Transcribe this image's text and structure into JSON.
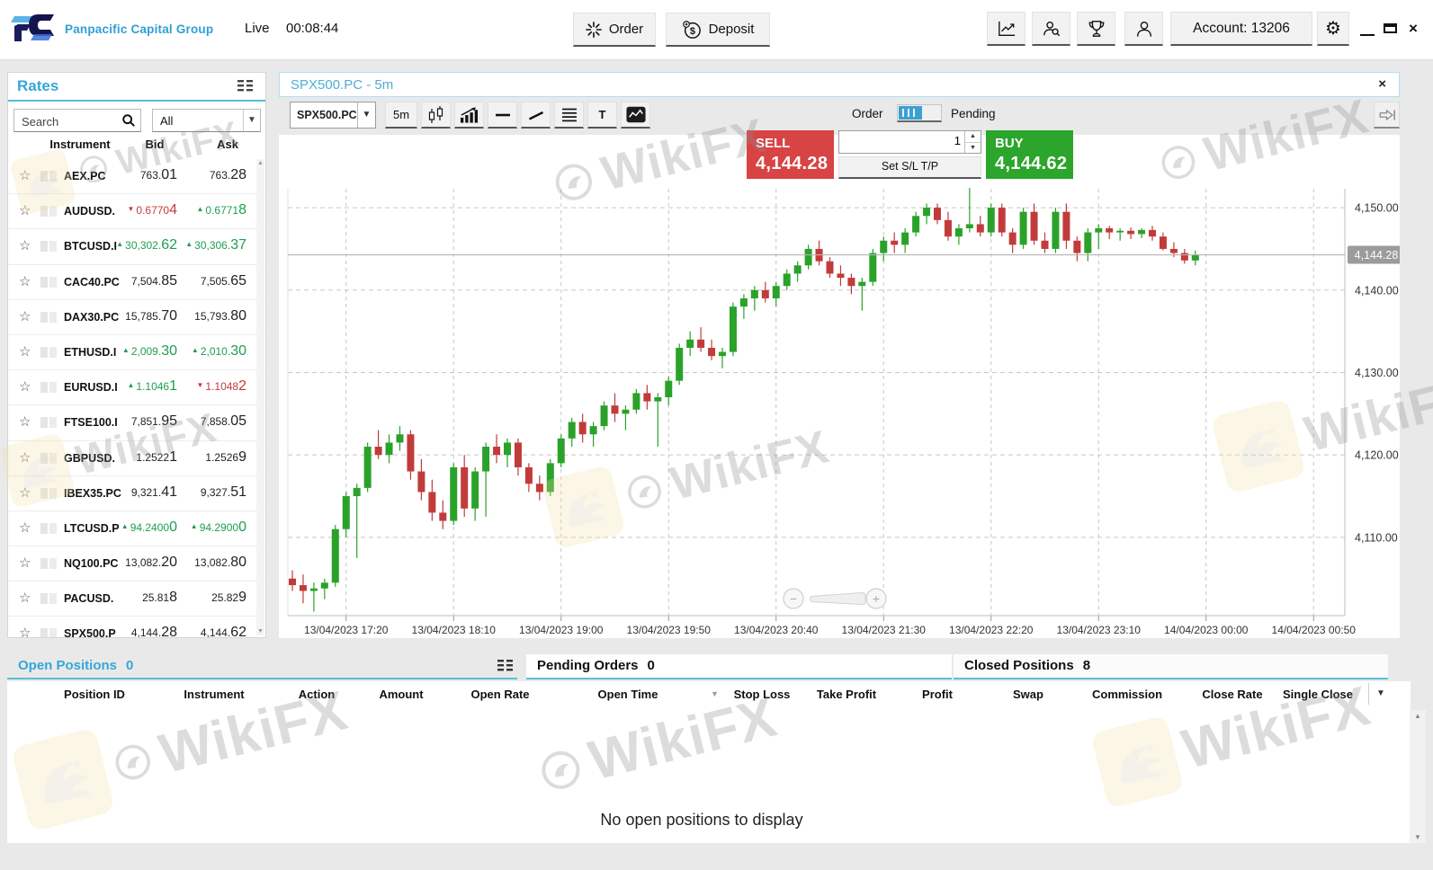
{
  "topbar": {
    "brand": "Panpacific Capital Group",
    "mode_label": "Live",
    "session_time": "00:08:44",
    "order_button": "Order",
    "deposit_button": "Deposit",
    "account_button": "Account: 13206"
  },
  "icons": {
    "gear": "⚙",
    "close": "×",
    "star": "☆",
    "caret_down": "▼",
    "spin_up": "▲",
    "spin_down": "▼",
    "sort_down": "▼",
    "scroll_up": "▲",
    "scroll_down": "▼",
    "zoom_minus": "−",
    "zoom_plus": "+"
  },
  "rates": {
    "title": "Rates",
    "search_placeholder": "Search",
    "filter_value": "All",
    "columns": [
      "Instrument",
      "Bid",
      "Ask"
    ],
    "rows": [
      {
        "name": "AEX.PC",
        "bid": {
          "dir": "",
          "main": "763.",
          "big": "01"
        },
        "ask": {
          "dir": "",
          "main": "763.",
          "big": "28"
        }
      },
      {
        "name": "AUDUSD.",
        "bid": {
          "dir": "down",
          "main": "0.6770",
          "big": "4"
        },
        "ask": {
          "dir": "up",
          "main": "0.6771",
          "big": "8"
        }
      },
      {
        "name": "BTCUSD.I",
        "bid": {
          "dir": "up",
          "main": "30,302.",
          "big": "62"
        },
        "ask": {
          "dir": "up",
          "main": "30,306.",
          "big": "37"
        }
      },
      {
        "name": "CAC40.PC",
        "bid": {
          "dir": "",
          "main": "7,504.",
          "big": "85"
        },
        "ask": {
          "dir": "",
          "main": "7,505.",
          "big": "65"
        }
      },
      {
        "name": "DAX30.PC",
        "bid": {
          "dir": "",
          "main": "15,785.",
          "big": "70"
        },
        "ask": {
          "dir": "",
          "main": "15,793.",
          "big": "80"
        }
      },
      {
        "name": "ETHUSD.I",
        "bid": {
          "dir": "up",
          "main": "2,009.",
          "big": "30"
        },
        "ask": {
          "dir": "up",
          "main": "2,010.",
          "big": "30"
        }
      },
      {
        "name": "EURUSD.I",
        "bid": {
          "dir": "up",
          "main": "1.1046",
          "big": "1"
        },
        "ask": {
          "dir": "down",
          "main": "1.1048",
          "big": "2"
        }
      },
      {
        "name": "FTSE100.I",
        "bid": {
          "dir": "",
          "main": "7,851.",
          "big": "95"
        },
        "ask": {
          "dir": "",
          "main": "7,858.",
          "big": "05"
        }
      },
      {
        "name": "GBPUSD.",
        "bid": {
          "dir": "",
          "main": "1.2522",
          "big": "1"
        },
        "ask": {
          "dir": "",
          "main": "1.2526",
          "big": "9"
        }
      },
      {
        "name": "IBEX35.PC",
        "bid": {
          "dir": "",
          "main": "9,321.",
          "big": "41"
        },
        "ask": {
          "dir": "",
          "main": "9,327.",
          "big": "51"
        }
      },
      {
        "name": "LTCUSD.P",
        "bid": {
          "dir": "up",
          "main": "94.2400",
          "big": "0"
        },
        "ask": {
          "dir": "up",
          "main": "94.2900",
          "big": "0"
        }
      },
      {
        "name": "NQ100.PC",
        "bid": {
          "dir": "",
          "main": "13,082.",
          "big": "20"
        },
        "ask": {
          "dir": "",
          "main": "13,082.",
          "big": "80"
        }
      },
      {
        "name": "PACUSD.",
        "bid": {
          "dir": "",
          "main": "25.81",
          "big": "8"
        },
        "ask": {
          "dir": "",
          "main": "25.82",
          "big": "9"
        }
      },
      {
        "name": "SPX500.P",
        "bid": {
          "dir": "",
          "main": "4,144.",
          "big": "28"
        },
        "ask": {
          "dir": "",
          "main": "4,144.",
          "big": "62"
        }
      }
    ]
  },
  "chart": {
    "tab_title": "SPX500.PC - 5m",
    "symbol_selector": "SPX500.PC",
    "timeframe_button": "5m",
    "text_tool": "T",
    "order_toggle_left": "Order",
    "order_toggle_right": "Pending",
    "sell_label": "SELL",
    "sell_price": "4,144.28",
    "amount_value": "1",
    "set_sl_tp": "Set S/L T/P",
    "buy_label": "BUY",
    "buy_price": "4,144.62"
  },
  "chart_data": {
    "type": "candlestick",
    "title": "SPX500.PC - 5m",
    "symbol": "SPX500.PC",
    "timeframe": "5m",
    "start_time": "13/04/2023 16:55",
    "interval_minutes": 5,
    "current_price": 4144.28,
    "current_price_label": "4,144.28",
    "ylim": [
      4100.5,
      4152.3
    ],
    "grid": true,
    "x_labels": [
      "13/04/2023 17:20",
      "13/04/2023 18:10",
      "13/04/2023 19:00",
      "13/04/2023 19:50",
      "13/04/2023 20:40",
      "13/04/2023 21:30",
      "13/04/2023 22:20",
      "13/04/2023 23:10",
      "14/04/2023 00:00",
      "14/04/2023 00:50"
    ],
    "y_ticks": [
      {
        "value": 4150,
        "label": "4,150.00"
      },
      {
        "value": 4140,
        "label": "4,140.00"
      },
      {
        "value": 4130,
        "label": "4,130.00"
      },
      {
        "value": 4120,
        "label": "4,120.00"
      },
      {
        "value": 4110,
        "label": "4,110.00"
      }
    ],
    "candles": [
      [
        4105.0,
        4106.0,
        4103.5,
        4104.2
      ],
      [
        4104.2,
        4105.5,
        4102.0,
        4103.5
      ],
      [
        4103.5,
        4104.5,
        4101.0,
        4103.8
      ],
      [
        4103.8,
        4105.0,
        4102.5,
        4104.5
      ],
      [
        4104.5,
        4111.5,
        4104.0,
        4111.0
      ],
      [
        4111.0,
        4115.5,
        4110.0,
        4115.0
      ],
      [
        4115.0,
        4116.5,
        4107.5,
        4116.0
      ],
      [
        4116.0,
        4121.5,
        4115.5,
        4121.0
      ],
      [
        4121.0,
        4123.0,
        4119.5,
        4120.0
      ],
      [
        4120.0,
        4122.5,
        4119.0,
        4121.5
      ],
      [
        4121.5,
        4123.5,
        4120.5,
        4122.5
      ],
      [
        4122.5,
        4123.0,
        4117.0,
        4118.0
      ],
      [
        4118.0,
        4119.5,
        4114.5,
        4115.5
      ],
      [
        4115.5,
        4117.0,
        4112.0,
        4113.0
      ],
      [
        4113.0,
        4114.5,
        4111.0,
        4112.0
      ],
      [
        4112.0,
        4119.0,
        4111.5,
        4118.5
      ],
      [
        4118.5,
        4120.0,
        4112.5,
        4113.5
      ],
      [
        4113.5,
        4118.5,
        4112.0,
        4118.0
      ],
      [
        4118.0,
        4121.5,
        4112.5,
        4121.0
      ],
      [
        4121.0,
        4122.5,
        4119.0,
        4120.0
      ],
      [
        4120.0,
        4122.0,
        4118.5,
        4121.5
      ],
      [
        4121.5,
        4122.0,
        4117.5,
        4118.5
      ],
      [
        4118.5,
        4119.0,
        4115.5,
        4116.5
      ],
      [
        4116.5,
        4117.5,
        4114.5,
        4115.5
      ],
      [
        4115.5,
        4119.5,
        4115.0,
        4119.0
      ],
      [
        4119.0,
        4122.5,
        4118.5,
        4122.0
      ],
      [
        4122.0,
        4124.5,
        4121.0,
        4124.0
      ],
      [
        4124.0,
        4125.0,
        4121.5,
        4122.5
      ],
      [
        4122.5,
        4124.0,
        4121.0,
        4123.5
      ],
      [
        4123.5,
        4126.5,
        4123.0,
        4126.0
      ],
      [
        4126.0,
        4127.5,
        4124.0,
        4125.0
      ],
      [
        4125.0,
        4126.0,
        4123.0,
        4125.5
      ],
      [
        4125.5,
        4128.0,
        4125.0,
        4127.5
      ],
      [
        4127.5,
        4128.5,
        4125.5,
        4126.5
      ],
      [
        4126.5,
        4127.5,
        4121.0,
        4127.0
      ],
      [
        4127.0,
        4129.5,
        4126.0,
        4129.0
      ],
      [
        4129.0,
        4133.5,
        4128.5,
        4133.0
      ],
      [
        4133.0,
        4135.0,
        4132.0,
        4134.0
      ],
      [
        4134.0,
        4135.5,
        4132.5,
        4133.0
      ],
      [
        4133.0,
        4134.0,
        4131.5,
        4132.0
      ],
      [
        4132.0,
        4133.0,
        4130.5,
        4132.5
      ],
      [
        4132.5,
        4138.5,
        4132.0,
        4138.0
      ],
      [
        4138.0,
        4139.5,
        4136.5,
        4139.0
      ],
      [
        4139.0,
        4140.5,
        4137.5,
        4140.0
      ],
      [
        4140.0,
        4141.0,
        4138.5,
        4139.0
      ],
      [
        4139.0,
        4141.0,
        4138.0,
        4140.5
      ],
      [
        4140.5,
        4142.5,
        4140.0,
        4142.0
      ],
      [
        4142.0,
        4143.5,
        4141.0,
        4143.0
      ],
      [
        4143.0,
        4145.5,
        4142.5,
        4145.0
      ],
      [
        4145.0,
        4146.0,
        4143.0,
        4143.5
      ],
      [
        4143.5,
        4144.0,
        4141.5,
        4142.0
      ],
      [
        4142.0,
        4143.0,
        4140.5,
        4141.5
      ],
      [
        4141.5,
        4142.0,
        4139.5,
        4140.5
      ],
      [
        4140.5,
        4141.5,
        4137.5,
        4141.0
      ],
      [
        4141.0,
        4145.0,
        4140.5,
        4144.5
      ],
      [
        4144.5,
        4146.5,
        4143.5,
        4146.0
      ],
      [
        4146.0,
        4147.0,
        4144.5,
        4145.5
      ],
      [
        4145.5,
        4147.5,
        4144.5,
        4147.0
      ],
      [
        4147.0,
        4149.5,
        4146.5,
        4149.0
      ],
      [
        4149.0,
        4150.5,
        4148.0,
        4150.0
      ],
      [
        4150.0,
        4150.5,
        4148.0,
        4148.5
      ],
      [
        4148.5,
        4149.5,
        4146.0,
        4146.5
      ],
      [
        4146.5,
        4148.0,
        4145.5,
        4147.5
      ],
      [
        4147.5,
        4152.4,
        4147.0,
        4148.0
      ],
      [
        4148.0,
        4149.0,
        4146.5,
        4147.0
      ],
      [
        4147.0,
        4150.5,
        4146.5,
        4150.0
      ],
      [
        4150.0,
        4150.5,
        4146.5,
        4147.0
      ],
      [
        4147.0,
        4147.5,
        4144.5,
        4145.5
      ],
      [
        4145.5,
        4150.0,
        4145.0,
        4149.5
      ],
      [
        4149.5,
        4150.5,
        4145.5,
        4146.0
      ],
      [
        4146.0,
        4147.0,
        4144.5,
        4145.0
      ],
      [
        4145.0,
        4150.0,
        4144.5,
        4149.5
      ],
      [
        4149.5,
        4150.5,
        4145.0,
        4146.0
      ],
      [
        4146.0,
        4146.5,
        4143.5,
        4144.5
      ],
      [
        4144.5,
        4147.5,
        4143.5,
        4147.0
      ],
      [
        4147.0,
        4148.0,
        4145.0,
        4147.5
      ],
      [
        4147.5,
        4147.8,
        4146.2,
        4147.0
      ],
      [
        4147.0,
        4147.5,
        4146.0,
        4147.2
      ],
      [
        4147.2,
        4147.6,
        4146.2,
        4146.8
      ],
      [
        4146.8,
        4147.5,
        4146.3,
        4147.3
      ],
      [
        4147.3,
        4147.8,
        4146.0,
        4146.5
      ],
      [
        4146.5,
        4147.0,
        4144.8,
        4145.0
      ],
      [
        4145.0,
        4145.8,
        4144.0,
        4144.5
      ],
      [
        4144.5,
        4145.0,
        4143.2,
        4143.6
      ],
      [
        4143.6,
        4144.8,
        4143.0,
        4144.3
      ]
    ]
  },
  "positions": {
    "tabs": [
      {
        "label": "Open Positions",
        "count": "0"
      },
      {
        "label": "Pending Orders",
        "count": "0"
      },
      {
        "label": "Closed Positions",
        "count": "8"
      }
    ],
    "columns": [
      "Position ID",
      "Instrument",
      "Action",
      "Amount",
      "Open Rate",
      "Open Time",
      "Stop Loss",
      "Take Profit",
      "Profit",
      "Swap",
      "Commission",
      "Close Rate",
      "Single Close"
    ],
    "empty_message": "No open positions to display"
  },
  "watermark": {
    "text": "WikiFX"
  },
  "colors": {
    "accent_blue": "#35a7d7",
    "sell_red": "#d84343",
    "buy_green": "#2ba52b",
    "candle_up": "#2aa22a",
    "candle_down": "#c23b3b",
    "price_badge": "#9b9b9b",
    "rate_up": "#1f9e50",
    "rate_down": "#c43b3e"
  }
}
